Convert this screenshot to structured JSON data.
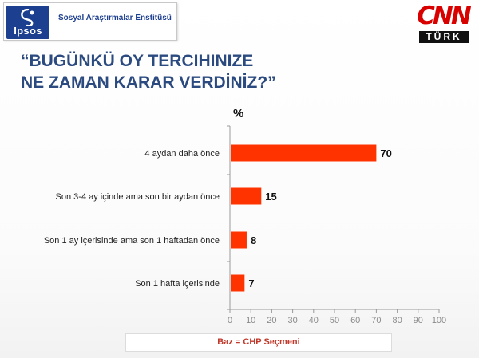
{
  "header": {
    "logo_text": "Ipsos",
    "institute": "Sosyal Araştırmalar Enstitüsü"
  },
  "brand": {
    "cnn": "CNN",
    "turk": "TÜRK"
  },
  "title_line1": "“BUGÜNKÜ OY TERCIHINIZE",
  "title_line2": "NE ZAMAN KARAR VERDİNİZ?”",
  "chart_data": {
    "type": "bar",
    "orientation": "horizontal",
    "unit_label": "%",
    "categories": [
      "4 aydan daha önce",
      "Son 3-4 ay içinde ama son bir aydan önce",
      "Son 1 ay içerisinde ama son 1 haftadan önce",
      "Son 1 hafta içerisinde"
    ],
    "values": [
      70,
      15,
      8,
      7
    ],
    "xlim": [
      0,
      100
    ],
    "x_ticks": [
      0,
      10,
      20,
      30,
      40,
      50,
      60,
      70,
      80,
      90,
      100
    ],
    "bar_color": "#ff3300",
    "grid": false,
    "legend": "none"
  },
  "footer": {
    "base_text": "Baz = CHP Seçmeni"
  },
  "colors": {
    "title": "#2b4a7f",
    "ipsos_blue": "#1d3f8f",
    "cnn_red": "#d90000",
    "base_text": "#c0392b"
  }
}
